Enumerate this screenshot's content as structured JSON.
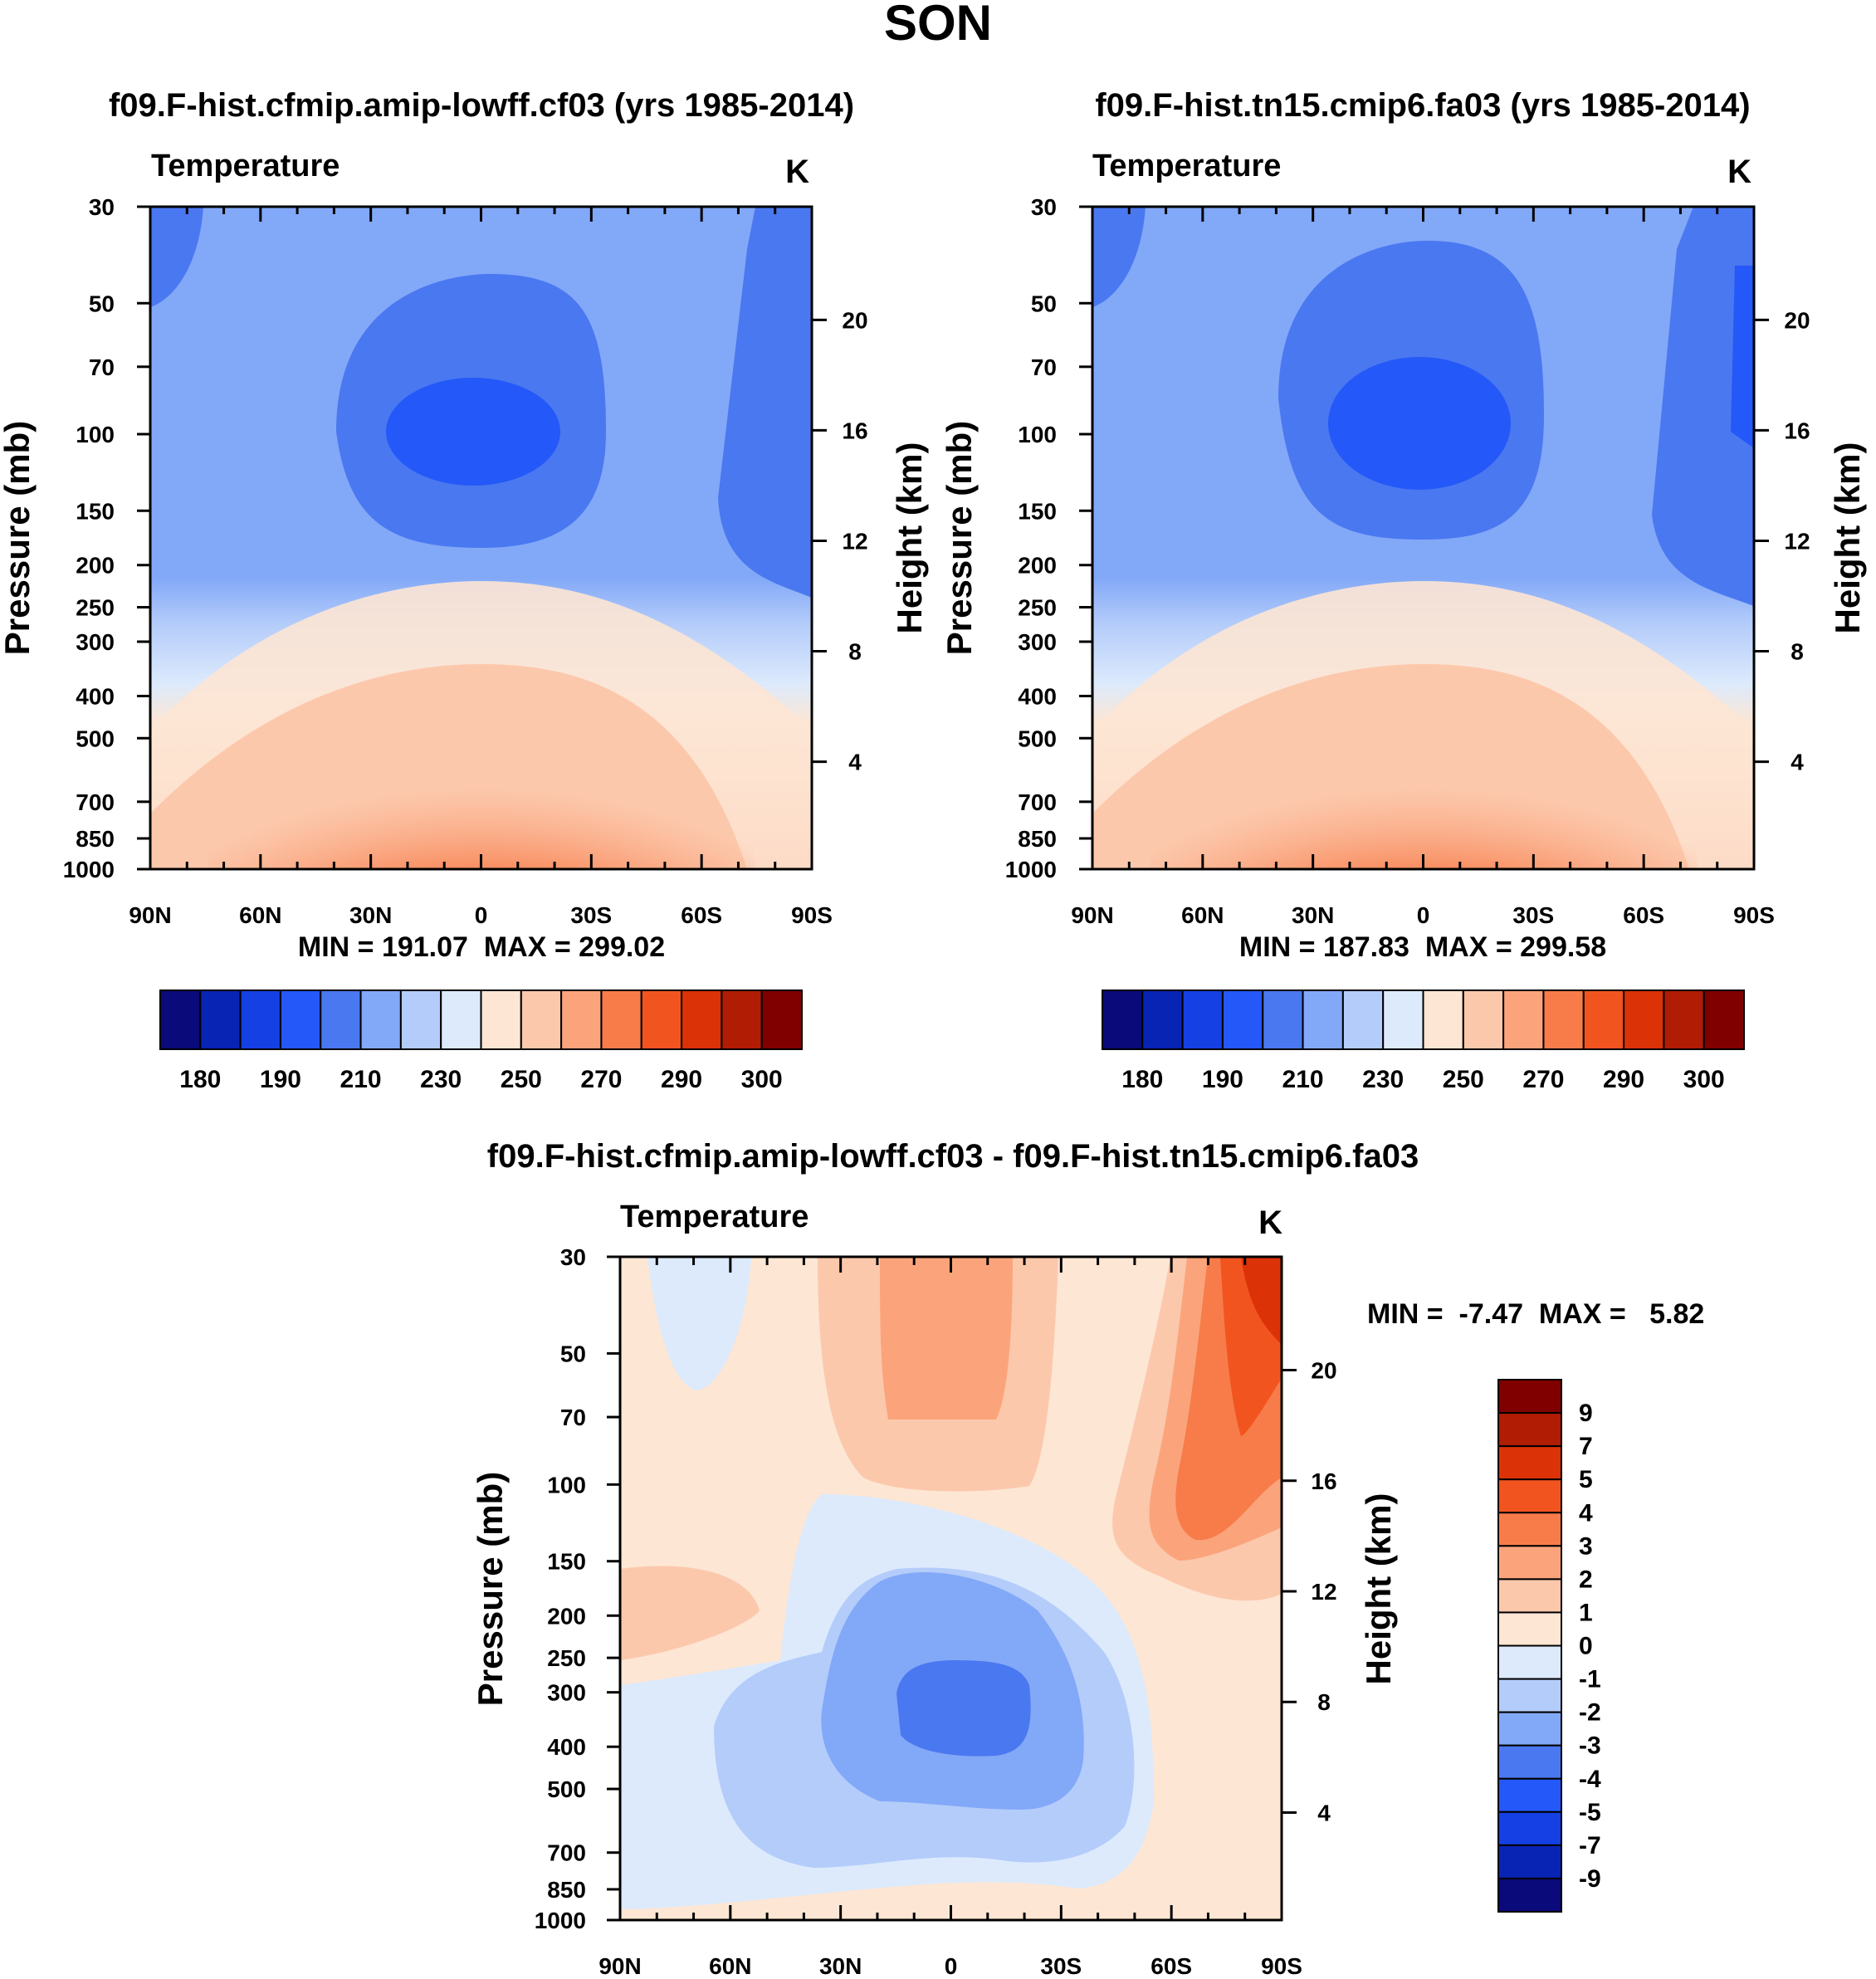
{
  "figure": {
    "season_title": "SON"
  },
  "chart_data": [
    {
      "type": "heatmap",
      "panel": "control-model",
      "title": "f09.F-hist.cfmip.amip-lowff.cf03 (yrs 1985-2014)",
      "variable": "Temperature",
      "units": "K",
      "xlabel": "",
      "ylabel": "Pressure (mb)",
      "y2label": "Height (km)",
      "x_ticks": [
        "90N",
        "60N",
        "30N",
        "0",
        "30S",
        "60S",
        "90S"
      ],
      "y_ticks": [
        "30",
        "50",
        "70",
        "100",
        "150",
        "200",
        "250",
        "300",
        "400",
        "500",
        "700",
        "850",
        "1000"
      ],
      "y2_ticks": [
        "20",
        "16",
        "12",
        "8",
        "4"
      ],
      "min": 191.07,
      "max": 299.02,
      "stats_text": "MIN = 191.07  MAX = 299.02",
      "colorbar_labels": [
        "180",
        "190",
        "210",
        "230",
        "250",
        "270",
        "290",
        "300"
      ],
      "colorbar_colors": [
        "#0a0a7a",
        "#0824b4",
        "#1440e4",
        "#2458f8",
        "#4a78f0",
        "#82a8f8",
        "#b4ccfa",
        "#dceafc",
        "#fde6d4",
        "#fcc8ac",
        "#fba47c",
        "#f77c4a",
        "#f25420",
        "#db3208",
        "#b01c04",
        "#800000"
      ]
    },
    {
      "type": "heatmap",
      "panel": "test-model",
      "title": "f09.F-hist.tn15.cmip6.fa03 (yrs 1985-2014)",
      "variable": "Temperature",
      "units": "K",
      "xlabel": "",
      "ylabel": "Pressure (mb)",
      "y2label": "Height (km)",
      "x_ticks": [
        "90N",
        "60N",
        "30N",
        "0",
        "30S",
        "60S",
        "90S"
      ],
      "y_ticks": [
        "30",
        "50",
        "70",
        "100",
        "150",
        "200",
        "250",
        "300",
        "400",
        "500",
        "700",
        "850",
        "1000"
      ],
      "y2_ticks": [
        "20",
        "16",
        "12",
        "8",
        "4"
      ],
      "min": 187.83,
      "max": 299.58,
      "stats_text": "MIN = 187.83  MAX = 299.58",
      "colorbar_labels": [
        "180",
        "190",
        "210",
        "230",
        "250",
        "270",
        "290",
        "300"
      ],
      "colorbar_colors": [
        "#0a0a7a",
        "#0824b4",
        "#1440e4",
        "#2458f8",
        "#4a78f0",
        "#82a8f8",
        "#b4ccfa",
        "#dceafc",
        "#fde6d4",
        "#fcc8ac",
        "#fba47c",
        "#f77c4a",
        "#f25420",
        "#db3208",
        "#b01c04",
        "#800000"
      ]
    },
    {
      "type": "heatmap",
      "panel": "difference",
      "title": "f09.F-hist.cfmip.amip-lowff.cf03 - f09.F-hist.tn15.cmip6.fa03",
      "variable": "Temperature",
      "units": "K",
      "xlabel": "",
      "ylabel": "Pressure (mb)",
      "y2label": "Height (km)",
      "x_ticks": [
        "90N",
        "60N",
        "30N",
        "0",
        "30S",
        "60S",
        "90S"
      ],
      "y_ticks": [
        "30",
        "50",
        "70",
        "100",
        "150",
        "200",
        "250",
        "300",
        "400",
        "500",
        "700",
        "850",
        "1000"
      ],
      "y2_ticks": [
        "20",
        "16",
        "12",
        "8",
        "4"
      ],
      "min": -7.47,
      "max": 5.82,
      "stats_text": "MIN =  -7.47  MAX =   5.82",
      "colorbar_labels": [
        "9",
        "7",
        "5",
        "4",
        "3",
        "2",
        "1",
        "0",
        "-1",
        "-2",
        "-3",
        "-4",
        "-5",
        "-7",
        "-9"
      ],
      "colorbar_colors": [
        "#800000",
        "#b01c04",
        "#db3208",
        "#f25420",
        "#f77c4a",
        "#fba47c",
        "#fcc8ac",
        "#fde6d4",
        "#dceafc",
        "#b4ccfa",
        "#82a8f8",
        "#4a78f0",
        "#2458f8",
        "#1440e4",
        "#0824b4",
        "#0a0a7a"
      ]
    }
  ]
}
